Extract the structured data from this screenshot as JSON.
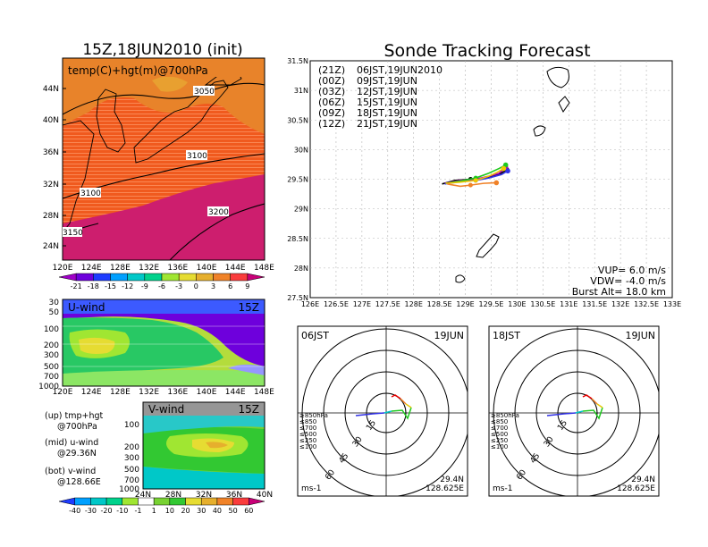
{
  "left_title": "15Z,18JUN2010 (init)",
  "main_title": "Sonde Tracking Forecast",
  "upper_map": {
    "label": "temp(C)+hgt(m)@700hPa",
    "lat_labels": [
      "44N",
      "40N",
      "36N",
      "32N",
      "28N",
      "24N"
    ],
    "lon_labels": [
      "120E",
      "124E",
      "128E",
      "132E",
      "136E",
      "140E",
      "144E",
      "148E"
    ],
    "contour_labels": [
      "3050",
      "3100",
      "3100",
      "3200",
      "3150"
    ],
    "colorbar_labels": [
      "-21",
      "-18",
      "-15",
      "-12",
      "-9",
      "-6",
      "-3",
      "0",
      "3",
      "6",
      "9"
    ],
    "colorbar_colors": [
      "#a000c8",
      "#6e00dc",
      "#1e3cff",
      "#00a0ff",
      "#00c8c8",
      "#00d28c",
      "#a0e632",
      "#e6dc32",
      "#e6af2d",
      "#f08228",
      "#fa3c3c",
      "#c80078"
    ]
  },
  "u_panel": {
    "label": "U-wind",
    "time": "15Z",
    "y_labels": [
      "30",
      "50",
      "100",
      "200",
      "300",
      "500",
      "700",
      "1000"
    ],
    "x_labels": [
      "120E",
      "124E",
      "128E",
      "132E",
      "136E",
      "140E",
      "144E",
      "148E"
    ]
  },
  "v_panel": {
    "label": "V-wind",
    "time": "15Z",
    "y_labels": [
      "100",
      "200",
      "300",
      "500",
      "700",
      "1000"
    ],
    "x_labels": [
      "24N",
      "28N",
      "32N",
      "36N",
      "40N"
    ]
  },
  "notes": {
    "up": "(up) tmp+hgt",
    "up2": "@700hPa",
    "mid": "(mid) u-wind",
    "mid2": "@29.36N",
    "bot": "(bot) v-wind",
    "bot2": "@128.66E"
  },
  "bottom_colorbar": {
    "labels": [
      "-40",
      "-30",
      "-20",
      "-10",
      "-1",
      "1",
      "10",
      "20",
      "30",
      "40",
      "50",
      "60"
    ],
    "colors": [
      "#1e3cff",
      "#00a0ff",
      "#00c8c8",
      "#00d28c",
      "#a0e632",
      "#ffffff",
      "#78d232",
      "#32c832",
      "#e6dc32",
      "#e6af2d",
      "#f08228",
      "#fa3c3c",
      "#c80078"
    ]
  },
  "legend": [
    {
      "code": "(21Z)",
      "time": "06JST,19JUN2010",
      "color": "#000000"
    },
    {
      "code": "(00Z)",
      "time": "09JST,19JUN",
      "color": "#b400b4"
    },
    {
      "code": "(03Z)",
      "time": "12JST,19JUN",
      "color": "#3232e6"
    },
    {
      "code": "(06Z)",
      "time": "15JST,19JUN",
      "color": "#1ec81e"
    },
    {
      "code": "(09Z)",
      "time": "18JST,19JUN",
      "color": "#f0c800"
    },
    {
      "code": "(12Z)",
      "time": "21JST,19JUN",
      "color": "#f08228"
    }
  ],
  "track_params": {
    "vup": "VUP= 6.0 m/s",
    "vdw": "VDW= -4.0 m/s",
    "burst": "Burst Alt= 18.0 km"
  },
  "chart_data": [
    {
      "type": "line",
      "title": "Sonde Tracking Forecast",
      "x_ticks": [
        "126E",
        "126.5E",
        "127E",
        "127.5E",
        "128E",
        "128.5E",
        "129E",
        "129.5E",
        "130E",
        "130.5E",
        "131E",
        "131.5E",
        "132E",
        "132.5E",
        "133E"
      ],
      "y_ticks": [
        "27.5N",
        "28N",
        "28.5N",
        "29N",
        "29.5N",
        "30N",
        "30.5N",
        "31N",
        "31.5N"
      ],
      "xlim": [
        126,
        133
      ],
      "ylim": [
        27.5,
        31.5
      ],
      "grid": true,
      "legend_position": "top-left",
      "series": [
        {
          "name": "(21Z) 06JST,19JUN2010",
          "color": "#000000",
          "points": [
            [
              128.55,
              29.42
            ],
            [
              128.8,
              29.48
            ],
            [
              129.1,
              29.5
            ],
            [
              129.4,
              29.52
            ],
            [
              129.65,
              29.58
            ],
            [
              129.8,
              29.66
            ]
          ]
        },
        {
          "name": "(00Z) 09JST,19JUN",
          "color": "#b400b4",
          "points": [
            [
              128.6,
              29.43
            ],
            [
              128.9,
              29.48
            ],
            [
              129.2,
              29.5
            ],
            [
              129.45,
              29.55
            ],
            [
              129.65,
              29.6
            ],
            [
              129.78,
              29.7
            ]
          ]
        },
        {
          "name": "(03Z) 12JST,19JUN",
          "color": "#3232e6",
          "points": [
            [
              128.6,
              29.42
            ],
            [
              128.9,
              29.46
            ],
            [
              129.2,
              29.48
            ],
            [
              129.45,
              29.52
            ],
            [
              129.7,
              29.58
            ],
            [
              129.82,
              29.64
            ]
          ]
        },
        {
          "name": "(06Z) 15JST,19JUN",
          "color": "#1ec81e",
          "points": [
            [
              128.62,
              29.43
            ],
            [
              128.9,
              29.47
            ],
            [
              129.2,
              29.52
            ],
            [
              129.45,
              29.6
            ],
            [
              129.65,
              29.68
            ],
            [
              129.78,
              29.74
            ]
          ]
        },
        {
          "name": "(09Z) 18JST,19JUN",
          "color": "#f0c800",
          "points": [
            [
              128.62,
              29.43
            ],
            [
              128.9,
              29.45
            ],
            [
              129.2,
              29.48
            ],
            [
              129.45,
              29.55
            ],
            [
              129.62,
              29.62
            ],
            [
              129.74,
              29.68
            ]
          ]
        },
        {
          "name": "(12Z) 21JST,19JUN",
          "color": "#f08228",
          "points": [
            [
              128.65,
              29.42
            ],
            [
              128.9,
              29.38
            ],
            [
              129.1,
              29.4
            ],
            [
              129.35,
              29.43
            ],
            [
              129.6,
              29.44
            ]
          ]
        }
      ],
      "annotations": [
        "VUP= 6.0 m/s",
        "VDW= -4.0 m/s",
        "Burst Alt= 18.0 km"
      ]
    }
  ],
  "hodographs": [
    {
      "time_label": "06JST",
      "date_label": "19JUN",
      "lat": "29.4N",
      "lon": "128.625E",
      "unit": "ms-1",
      "ring_labels": [
        "15",
        "30",
        "45",
        "60"
      ],
      "pressure_legend": [
        {
          "label": "≥850hPa",
          "color": "#e60000"
        },
        {
          "label": "≤850",
          "color": "#f08228"
        },
        {
          "label": "≤700",
          "color": "#e6c800"
        },
        {
          "label": "≤500",
          "color": "#1ec81e"
        },
        {
          "label": "≤250",
          "color": "#00c8c8"
        },
        {
          "label": "≤100",
          "color": "#3232e6"
        }
      ]
    },
    {
      "time_label": "18JST",
      "date_label": "19JUN",
      "lat": "29.4N",
      "lon": "128.625E",
      "unit": "ms-1",
      "ring_labels": [
        "15",
        "30",
        "45",
        "60"
      ],
      "pressure_legend": [
        {
          "label": "≥850hPa",
          "color": "#e60000"
        },
        {
          "label": "≤850",
          "color": "#f08228"
        },
        {
          "label": "≤700",
          "color": "#e6c800"
        },
        {
          "label": "≤500",
          "color": "#1ec81e"
        },
        {
          "label": "≤250",
          "color": "#00c8c8"
        },
        {
          "label": "≤100",
          "color": "#3232e6"
        }
      ]
    }
  ]
}
